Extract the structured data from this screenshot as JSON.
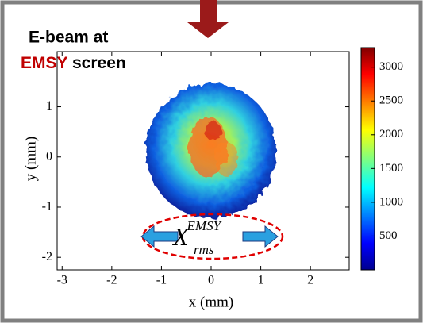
{
  "chart_data": {
    "type": "image",
    "title": {
      "line1": "E-beam at",
      "highlight": "EMSY",
      "line2_rest": "screen"
    },
    "xlabel": "x (mm)",
    "ylabel": "y (mm)",
    "xlim": [
      -3.1,
      2.78
    ],
    "xticks": [
      -3,
      -2,
      -1,
      0,
      1,
      2
    ],
    "ylim": [
      -2.25,
      2.1
    ],
    "yticks": [
      -2,
      -1,
      0,
      1
    ],
    "colormap": "jet",
    "clim": [
      0,
      3290
    ],
    "cticks": [
      500,
      1000,
      1500,
      2000,
      2500,
      3000
    ],
    "annotation": {
      "symbol": "X",
      "subscript": "rms",
      "superscript": "EMSY"
    }
  }
}
